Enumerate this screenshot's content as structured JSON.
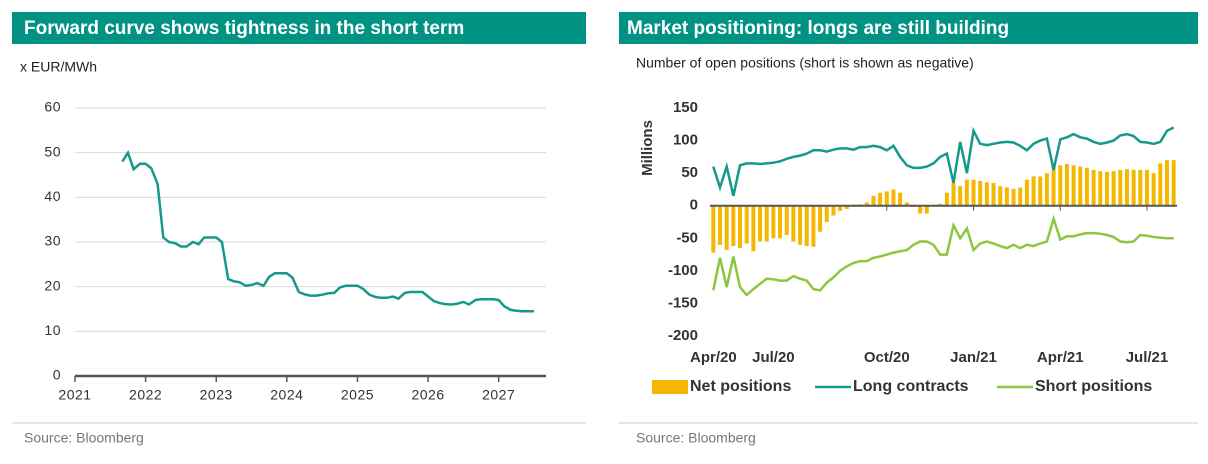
{
  "chart_data": [
    {
      "type": "line",
      "title": "Forward curve shows tightness in the short term",
      "y_label": "x EUR/MWh",
      "source": "Source: Bloomberg",
      "x": [
        2021.67,
        2021.75,
        2021.83,
        2021.92,
        2022,
        2022.08,
        2022.17,
        2022.25,
        2022.33,
        2022.42,
        2022.5,
        2022.58,
        2022.67,
        2022.75,
        2022.83,
        2022.92,
        2023,
        2023.08,
        2023.17,
        2023.25,
        2023.33,
        2023.42,
        2023.5,
        2023.58,
        2023.67,
        2023.75,
        2023.83,
        2023.92,
        2024,
        2024.08,
        2024.17,
        2024.25,
        2024.33,
        2024.42,
        2024.5,
        2024.58,
        2024.67,
        2024.75,
        2024.83,
        2024.92,
        2025,
        2025.08,
        2025.17,
        2025.25,
        2025.33,
        2025.42,
        2025.5,
        2025.58,
        2025.67,
        2025.75,
        2025.83,
        2025.92,
        2026,
        2026.08,
        2026.17,
        2026.25,
        2026.33,
        2026.42,
        2026.5,
        2026.58,
        2026.67,
        2026.75,
        2026.83,
        2026.92,
        2027,
        2027.08,
        2027.17,
        2027.25,
        2027.33,
        2027.42,
        2027.5
      ],
      "series": [
        {
          "color": "#14998b",
          "values": [
            48,
            50,
            46.3,
            47.5,
            47.5,
            46.5,
            43,
            31,
            30,
            29.7,
            29,
            29,
            30,
            29.5,
            31,
            31,
            31,
            30,
            21.7,
            21.2,
            21,
            20.2,
            20.4,
            20.8,
            20.2,
            22.2,
            23,
            23,
            23,
            22,
            18.8,
            18.3,
            18,
            18,
            18.2,
            18.5,
            18.6,
            19.8,
            20.2,
            20.2,
            20.2,
            19.5,
            18.2,
            17.7,
            17.5,
            17.5,
            17.8,
            17.3,
            18.6,
            18.8,
            18.8,
            18.8,
            17.8,
            16.8,
            16.3,
            16.1,
            16,
            16.2,
            16.6,
            16,
            17,
            17.2,
            17.2,
            17.2,
            17,
            15.6,
            14.8,
            14.6,
            14.5,
            14.5,
            14.5
          ]
        }
      ],
      "xlim": [
        2021,
        2027.67
      ],
      "xticks": [
        2021,
        2022,
        2023,
        2024,
        2025,
        2026,
        2027
      ],
      "ylim": [
        0,
        60
      ],
      "yticks": [
        0,
        10,
        20,
        30,
        40,
        50,
        60
      ],
      "grid": true
    },
    {
      "type": "combo",
      "title": "Market positioning: longs are still building",
      "subtitle": "Number of open positions (short is shown as negative)",
      "y_label": "Millions",
      "source": "Source: Bloomberg",
      "categories": [
        "Apr/20",
        null,
        null,
        null,
        null,
        null,
        null,
        null,
        null,
        "Jul/20",
        null,
        null,
        null,
        null,
        null,
        null,
        null,
        null,
        null,
        null,
        null,
        null,
        null,
        null,
        null,
        null,
        "Oct/20",
        null,
        null,
        null,
        null,
        null,
        null,
        null,
        null,
        null,
        null,
        null,
        null,
        "Jan/21",
        null,
        null,
        null,
        null,
        null,
        null,
        null,
        null,
        null,
        null,
        null,
        null,
        "Apr/21",
        null,
        null,
        null,
        null,
        null,
        null,
        null,
        null,
        null,
        null,
        null,
        null,
        "Jul/21",
        null,
        null,
        null,
        null
      ],
      "series": [
        {
          "name": "Net positions",
          "type": "bar",
          "color": "#f5b800",
          "values": [
            -72,
            -60,
            -68,
            -62,
            -65,
            -58,
            -70,
            -55,
            -55,
            -50,
            -50,
            -45,
            -55,
            -60,
            -62,
            -63,
            -40,
            -25,
            -15,
            -8,
            -5,
            -2,
            2,
            5,
            15,
            20,
            22,
            25,
            20,
            5,
            -2,
            -12,
            -12,
            0,
            3,
            20,
            35,
            30,
            40,
            40,
            38,
            36,
            35,
            30,
            28,
            26,
            28,
            40,
            45,
            45,
            50,
            60,
            62,
            64,
            62,
            60,
            58,
            55,
            53,
            52,
            53,
            55,
            56,
            55,
            55,
            55,
            50,
            65,
            70,
            70
          ]
        },
        {
          "name": "Long contracts",
          "type": "line",
          "color": "#14998b",
          "values": [
            60,
            28,
            60,
            15,
            62,
            65,
            65,
            64,
            65,
            66,
            68,
            72,
            75,
            77,
            80,
            85,
            85,
            83,
            86,
            88,
            88,
            86,
            90,
            90,
            92,
            90,
            85,
            92,
            75,
            62,
            58,
            58,
            60,
            65,
            75,
            80,
            35,
            98,
            50,
            115,
            95,
            93,
            95,
            97,
            98,
            97,
            92,
            85,
            95,
            100,
            103,
            55,
            102,
            105,
            110,
            105,
            103,
            98,
            95,
            97,
            100,
            108,
            110,
            107,
            98,
            97,
            95,
            98,
            115,
            120
          ]
        },
        {
          "name": "Short positions",
          "type": "line",
          "color": "#8dc63f",
          "values": [
            -130,
            -80,
            -125,
            -78,
            -125,
            -137,
            -128,
            -120,
            -112,
            -113,
            -115,
            -115,
            -108,
            -112,
            -115,
            -128,
            -130,
            -118,
            -110,
            -100,
            -93,
            -88,
            -85,
            -85,
            -80,
            -78,
            -75,
            -72,
            -70,
            -68,
            -60,
            -55,
            -55,
            -60,
            -75,
            -75,
            -30,
            -50,
            -35,
            -68,
            -58,
            -55,
            -58,
            -62,
            -65,
            -60,
            -65,
            -60,
            -62,
            -58,
            -55,
            -20,
            -52,
            -47,
            -47,
            -44,
            -42,
            -42,
            -43,
            -45,
            -48,
            -55,
            -56,
            -55,
            -45,
            -46,
            -48,
            -49,
            -50,
            -50
          ]
        }
      ],
      "ylim": [
        -200,
        150
      ],
      "yticks": [
        150,
        100,
        50,
        0,
        -50,
        -100,
        -150,
        -200
      ],
      "grid": false,
      "legend": "bottom"
    }
  ]
}
